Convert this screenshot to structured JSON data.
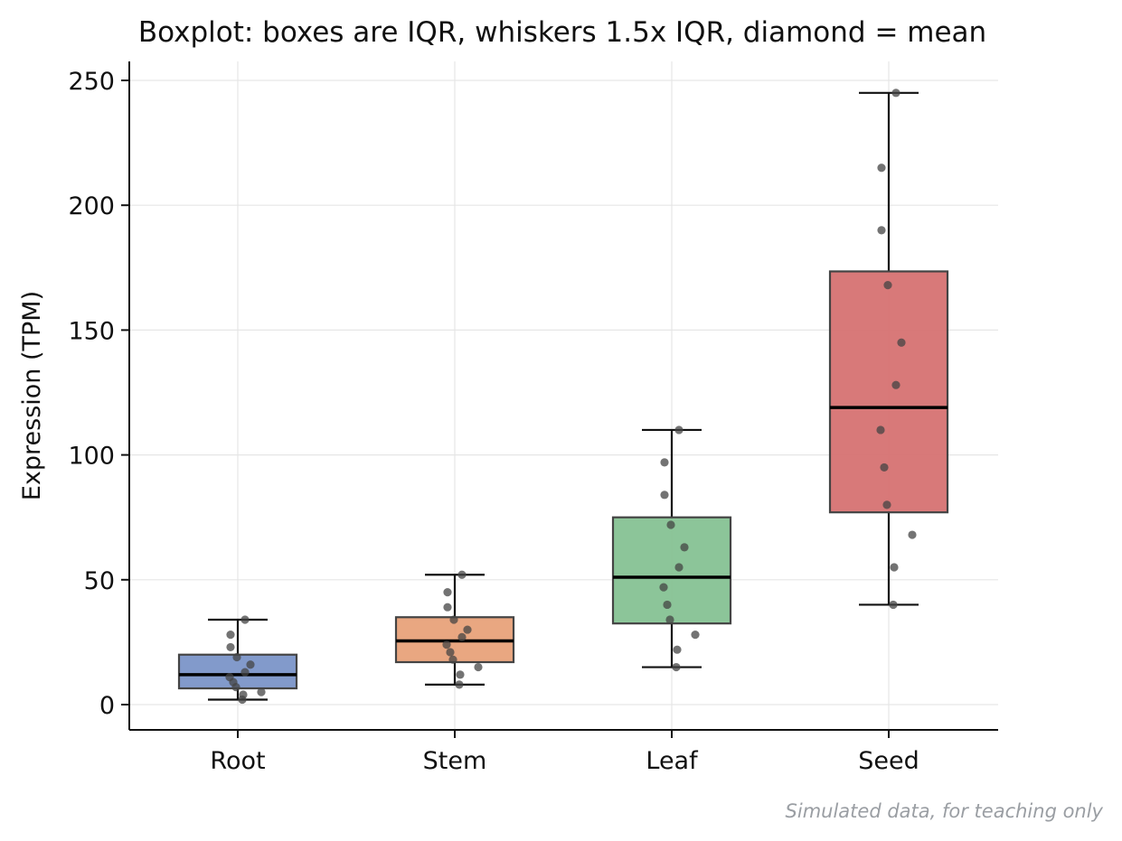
{
  "chart_data": {
    "type": "box",
    "title": "Boxplot: boxes are IQR, whiskers 1.5x IQR, diamond = mean",
    "xlabel": "",
    "ylabel": "Expression (TPM)",
    "ylim": [
      -10,
      258
    ],
    "yticks": [
      0,
      50,
      100,
      150,
      200,
      250
    ],
    "grid": true,
    "footnote": "Simulated data, for teaching only",
    "categories": [
      "Root",
      "Stem",
      "Leaf",
      "Seed"
    ],
    "boxes": [
      {
        "name": "Root",
        "color": "#7b95c8",
        "whisker_low": 2,
        "q1": 6.5,
        "median": 12,
        "q3": 20,
        "whisker_high": 34,
        "points": [
          34,
          28,
          23,
          19,
          16,
          13,
          11,
          9,
          7,
          5,
          4,
          2
        ]
      },
      {
        "name": "Stem",
        "color": "#e8a27a",
        "whisker_low": 8,
        "q1": 17,
        "median": 25.5,
        "q3": 35,
        "whisker_high": 52,
        "points": [
          52,
          45,
          39,
          34,
          30,
          27,
          24,
          21,
          18,
          15,
          12,
          8
        ]
      },
      {
        "name": "Leaf",
        "color": "#86c293",
        "whisker_low": 15,
        "q1": 32.5,
        "median": 51,
        "q3": 75,
        "whisker_high": 110,
        "points": [
          110,
          97,
          84,
          72,
          63,
          55,
          47,
          40,
          34,
          28,
          22,
          15
        ]
      },
      {
        "name": "Seed",
        "color": "#d67272",
        "whisker_low": 40,
        "q1": 77,
        "median": 119,
        "q3": 173.5,
        "whisker_high": 245,
        "points": [
          245,
          215,
          190,
          168,
          145,
          128,
          110,
          95,
          80,
          68,
          55,
          40
        ]
      }
    ]
  }
}
